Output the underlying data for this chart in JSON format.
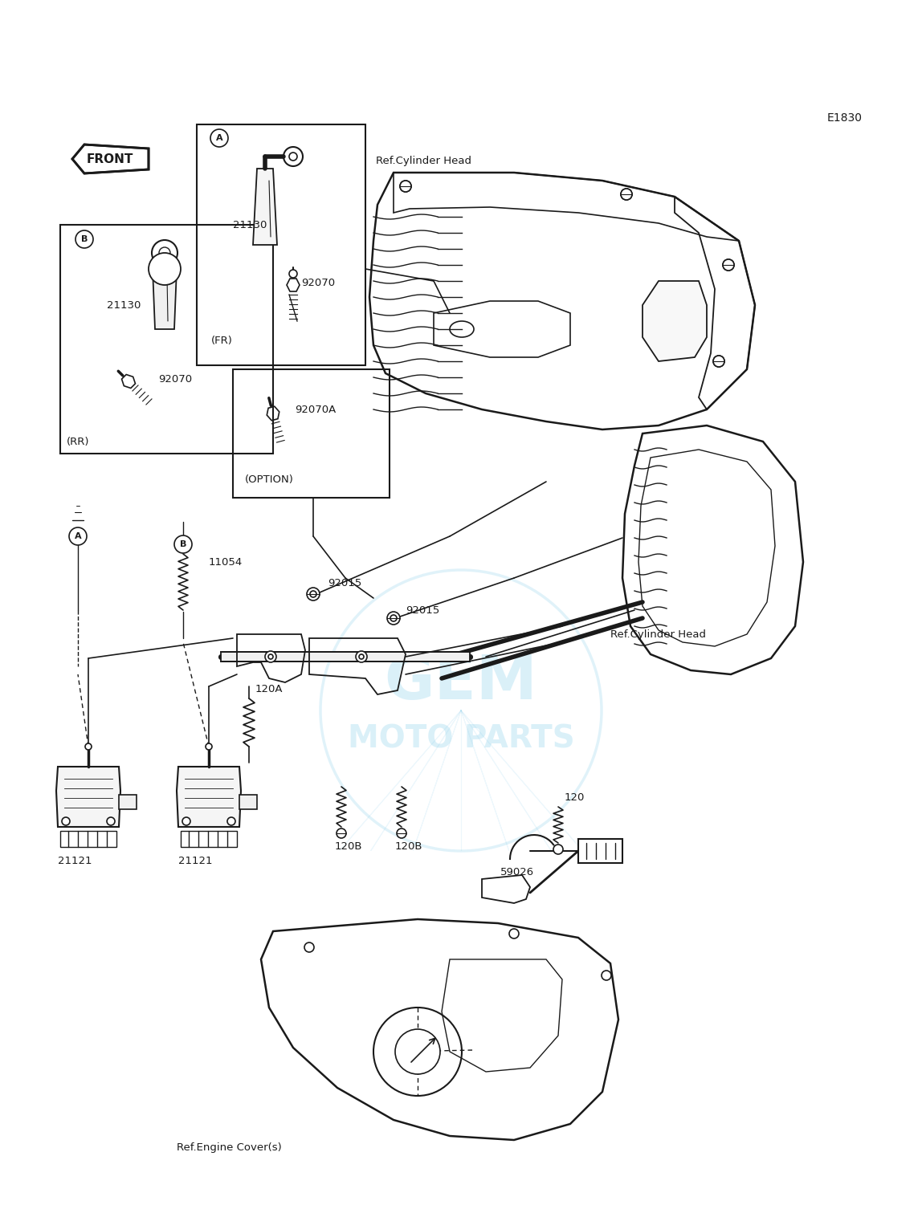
{
  "bg_color": "#ffffff",
  "line_color": "#1a1a1a",
  "watermark_color": "#87CEEB",
  "ref_code": "E1830",
  "labels": {
    "front": "FRONT",
    "ref_cyl_head_top": "Ref.Cylinder Head",
    "ref_cyl_head_bot": "Ref.Cylinder Head",
    "ref_engine_cover": "Ref.Engine Cover(s)",
    "fr": "(FR)",
    "rr": "(RR)",
    "option": "(OPTION)"
  },
  "parts": {
    "21130_fr": "21130",
    "92070_fr": "92070",
    "21130_rr": "21130",
    "92070_rr": "92070",
    "92070a": "92070A",
    "11054": "11054",
    "92015_a": "92015",
    "92015_b": "92015",
    "120a": "120A",
    "120b_l": "120B",
    "120b_r": "120B",
    "120": "120",
    "21121_l": "21121",
    "21121_r": "21121",
    "59026": "59026"
  },
  "figsize": [
    11.48,
    15.01
  ],
  "dpi": 100
}
